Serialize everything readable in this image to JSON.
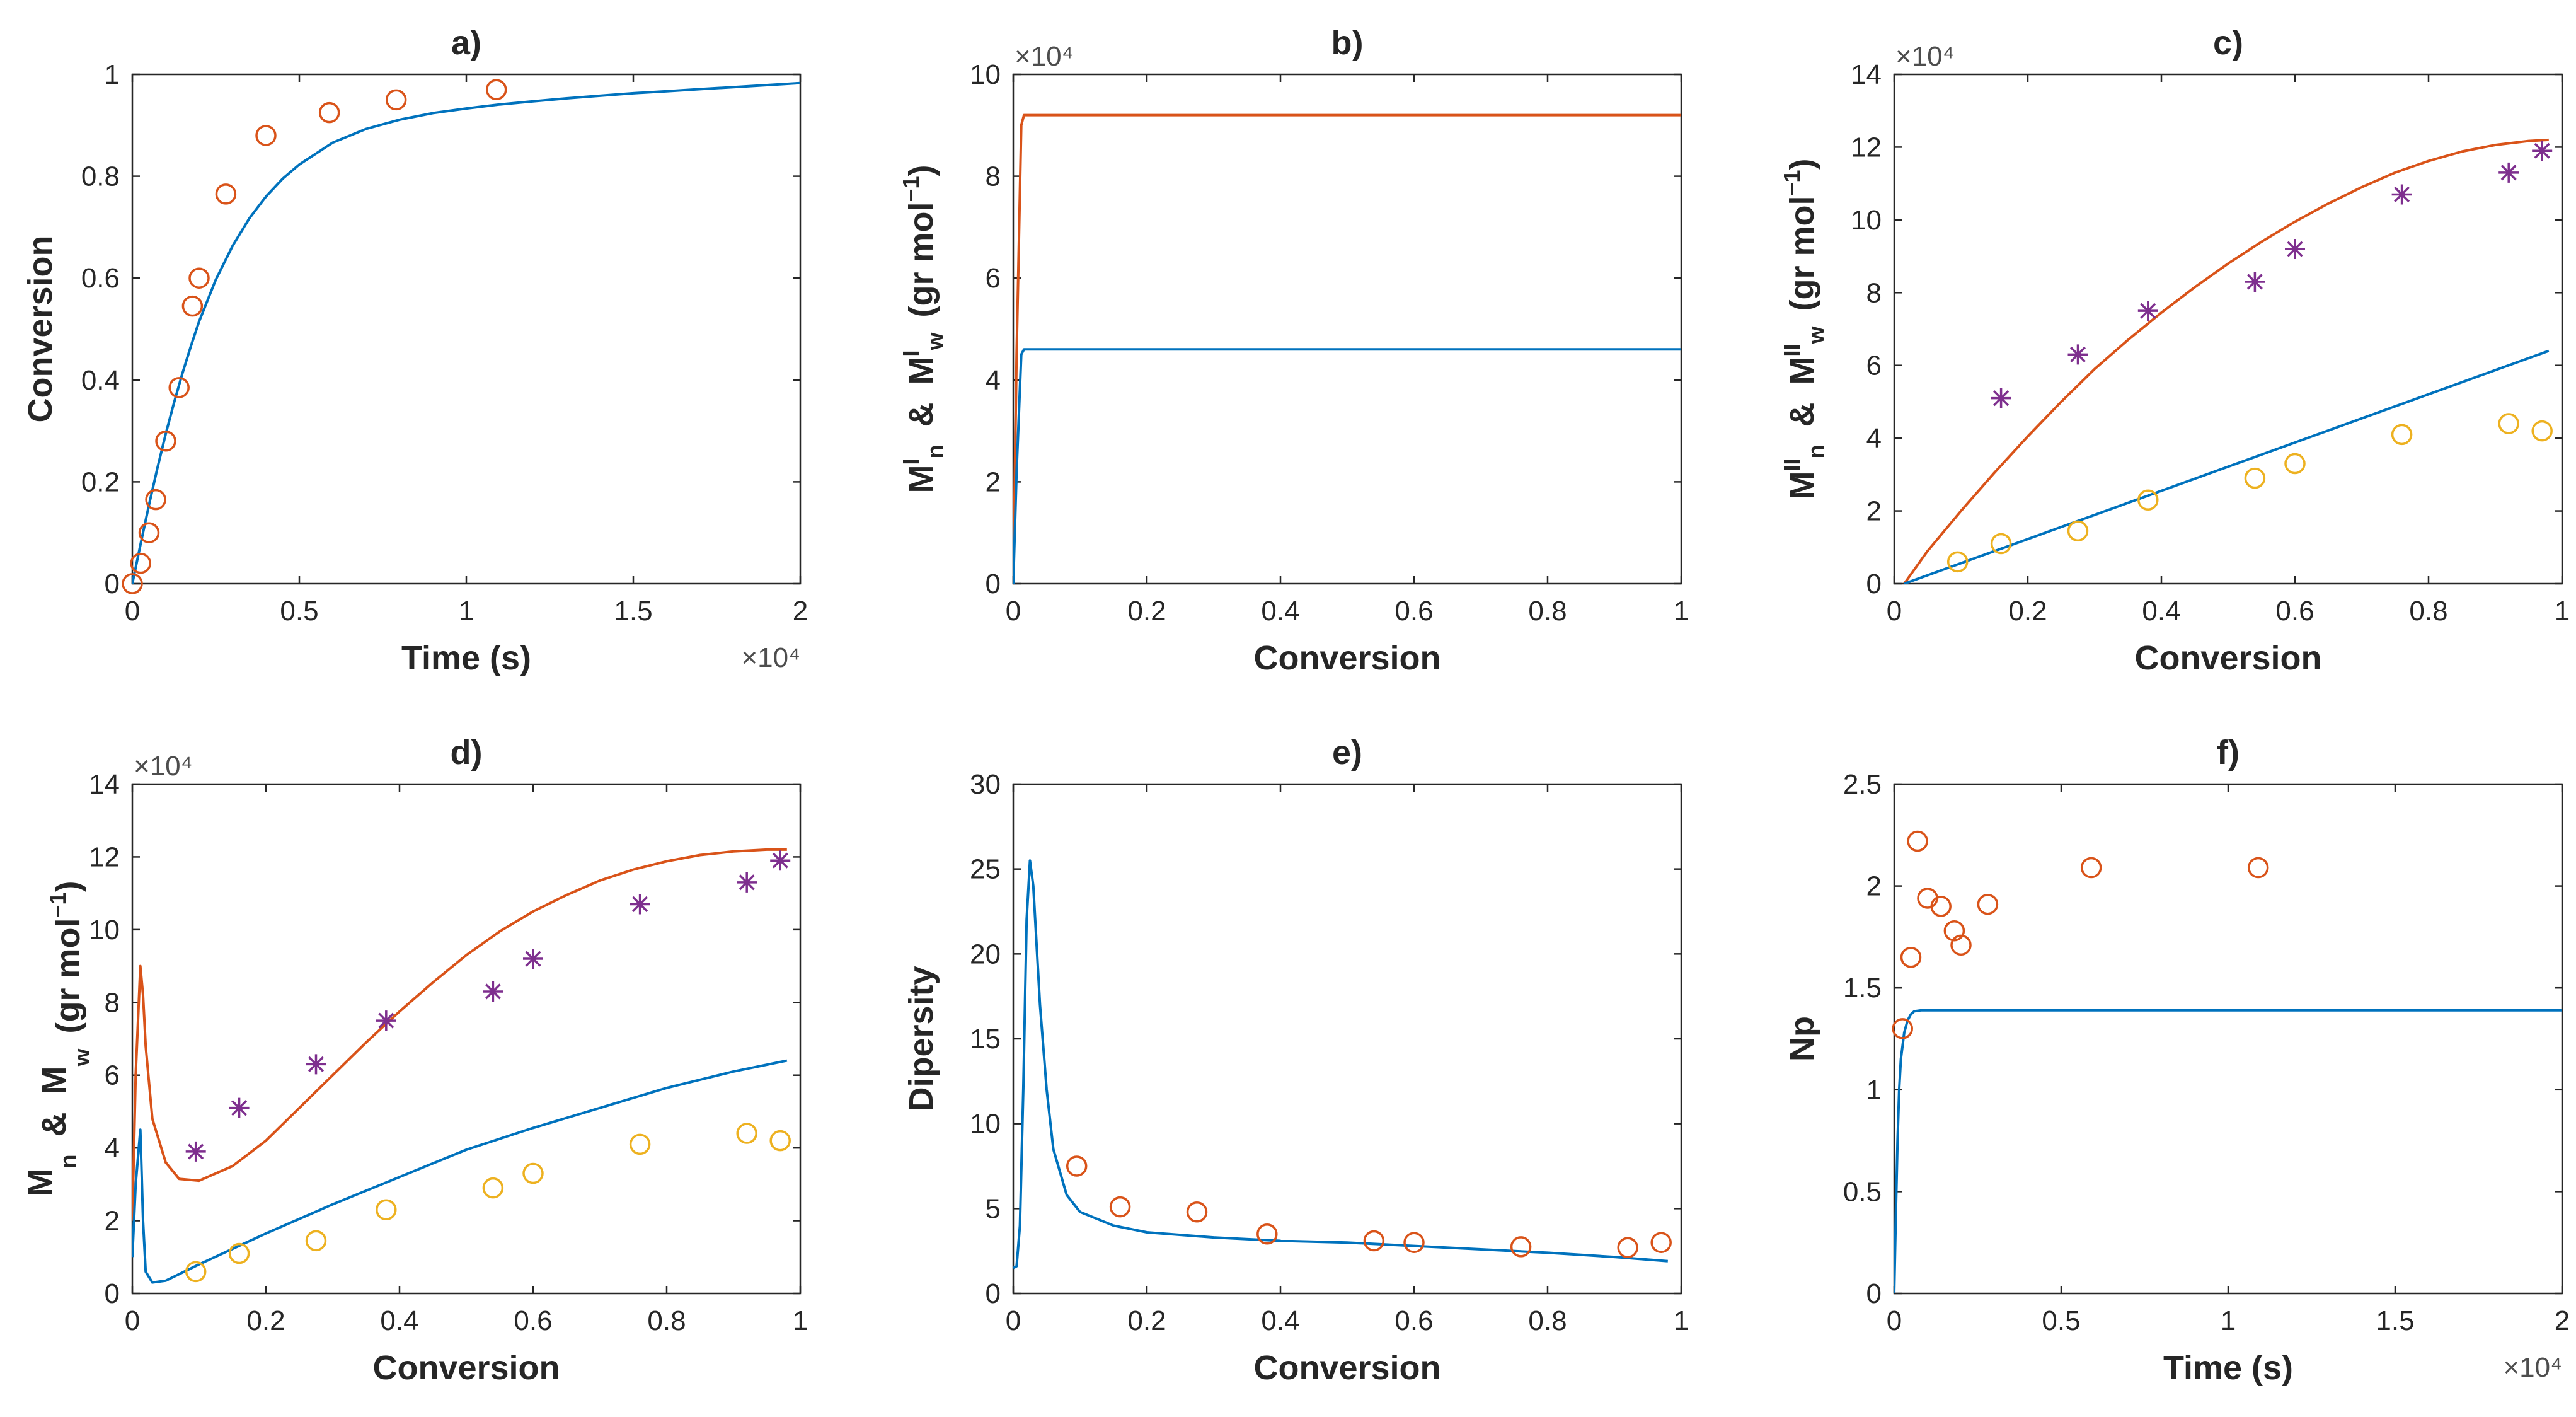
{
  "colors": {
    "model_blue": "#0072BD",
    "model_orange": "#D95319",
    "exp_orange": "#D95319",
    "exp_purple": "#7E2F8E",
    "exp_yellow": "#EDB120",
    "axis": "#262626"
  },
  "chart_data": [
    {
      "id": "a",
      "type": "line",
      "title": "a)",
      "xlabel": "Time (s)",
      "ylabel": "Conversion",
      "xlim": [
        0,
        20000
      ],
      "ylim": [
        0,
        1
      ],
      "xticks": [
        0,
        5000,
        10000,
        15000,
        20000
      ],
      "xtick_labels": [
        "0",
        "0.5",
        "1",
        "1.5",
        "2"
      ],
      "x_multiplier": "×10⁴",
      "yticks": [
        0,
        0.2,
        0.4,
        0.6,
        0.8,
        1
      ],
      "ytick_labels": [
        "0",
        "0.2",
        "0.4",
        "0.6",
        "0.8",
        "1"
      ],
      "series": [
        {
          "name": "model",
          "kind": "line",
          "color": "#0072BD",
          "x": [
            0,
            250,
            500,
            750,
            1000,
            1250,
            1500,
            1750,
            2000,
            2500,
            3000,
            3500,
            4000,
            4500,
            5000,
            6000,
            7000,
            8000,
            9000,
            10000,
            11000,
            12000,
            13000,
            14000,
            15000,
            16000,
            17000,
            18000,
            19000,
            20000
          ],
          "y": [
            0,
            0.079,
            0.155,
            0.227,
            0.294,
            0.356,
            0.413,
            0.466,
            0.515,
            0.597,
            0.663,
            0.717,
            0.76,
            0.795,
            0.823,
            0.866,
            0.893,
            0.911,
            0.924,
            0.933,
            0.941,
            0.947,
            0.953,
            0.958,
            0.963,
            0.967,
            0.971,
            0.975,
            0.979,
            0.983
          ]
        },
        {
          "name": "experiment",
          "kind": "circle",
          "color": "#D95319",
          "x": [
            0,
            250,
            500,
            700,
            1000,
            1400,
            1800,
            2000,
            2800,
            4000,
            5900,
            7900,
            10900
          ],
          "y": [
            0,
            0.04,
            0.1,
            0.165,
            0.28,
            0.385,
            0.545,
            0.6,
            0.765,
            0.88,
            0.925,
            0.95,
            0.97
          ]
        }
      ]
    },
    {
      "id": "b",
      "type": "line",
      "title": "b)",
      "xlabel": "Conversion",
      "ylabel_parts": [
        "M",
        "n",
        "I",
        "&",
        "M",
        "w",
        "I",
        "(gr mol",
        "−1",
        ")"
      ],
      "xlim": [
        0,
        1
      ],
      "ylim": [
        0,
        100000
      ],
      "xticks": [
        0,
        0.2,
        0.4,
        0.6,
        0.8,
        1
      ],
      "xtick_labels": [
        "0",
        "0.2",
        "0.4",
        "0.6",
        "0.8",
        "1"
      ],
      "yticks": [
        0,
        20000,
        40000,
        60000,
        80000,
        100000
      ],
      "ytick_labels": [
        "0",
        "2",
        "4",
        "6",
        "8",
        "10"
      ],
      "y_multiplier": "×10⁴",
      "series": [
        {
          "name": "Mw I",
          "kind": "line",
          "color": "#D95319",
          "x": [
            0,
            0.005,
            0.012,
            0.016,
            1
          ],
          "y": [
            0,
            45000,
            90000,
            92000,
            92000
          ]
        },
        {
          "name": "Mn I",
          "kind": "line",
          "color": "#0072BD",
          "x": [
            0,
            0.005,
            0.012,
            0.016,
            1
          ],
          "y": [
            0,
            22000,
            45000,
            46000,
            46000
          ]
        }
      ]
    },
    {
      "id": "c",
      "type": "line",
      "title": "c)",
      "xlabel": "Conversion",
      "ylabel_parts": [
        "M",
        "n",
        "II",
        "&",
        "M",
        "w",
        "II",
        "(gr mol",
        "−1",
        ")"
      ],
      "xlim": [
        0,
        1
      ],
      "ylim": [
        0,
        140000
      ],
      "xticks": [
        0,
        0.2,
        0.4,
        0.6,
        0.8,
        1
      ],
      "xtick_labels": [
        "0",
        "0.2",
        "0.4",
        "0.6",
        "0.8",
        "1"
      ],
      "yticks": [
        0,
        20000,
        40000,
        60000,
        80000,
        100000,
        120000,
        140000
      ],
      "ytick_labels": [
        "0",
        "2",
        "4",
        "6",
        "8",
        "10",
        "12",
        "14"
      ],
      "y_multiplier": "×10⁴",
      "series": [
        {
          "name": "Mw II model",
          "kind": "line",
          "color": "#D95319",
          "x": [
            0.015,
            0.05,
            0.1,
            0.15,
            0.2,
            0.25,
            0.3,
            0.35,
            0.4,
            0.45,
            0.5,
            0.55,
            0.6,
            0.65,
            0.7,
            0.75,
            0.8,
            0.85,
            0.9,
            0.95,
            0.98
          ],
          "y": [
            0,
            9000,
            20000,
            30500,
            40500,
            50000,
            59000,
            67000,
            74500,
            81500,
            88000,
            94000,
            99500,
            104500,
            109000,
            113000,
            116200,
            118800,
            120600,
            121700,
            122000
          ]
        },
        {
          "name": "Mn II model",
          "kind": "line",
          "color": "#0072BD",
          "x": [
            0.015,
            0.98
          ],
          "y": [
            0,
            64000
          ]
        },
        {
          "name": "Mw II experiment",
          "kind": "star",
          "color": "#7E2F8E",
          "x": [
            0.16,
            0.275,
            0.38,
            0.54,
            0.6,
            0.76,
            0.92,
            0.97
          ],
          "y": [
            51000,
            63000,
            75000,
            83000,
            92000,
            107000,
            113000,
            119000
          ]
        },
        {
          "name": "Mn II experiment",
          "kind": "circle",
          "color": "#EDB120",
          "x": [
            0.095,
            0.16,
            0.275,
            0.38,
            0.54,
            0.6,
            0.76,
            0.92,
            0.97
          ],
          "y": [
            6000,
            11000,
            14500,
            23000,
            29000,
            33000,
            41000,
            44000,
            42000
          ]
        }
      ]
    },
    {
      "id": "d",
      "type": "line",
      "title": "d)",
      "xlabel": "Conversion",
      "ylabel_parts": [
        "M",
        "n",
        "",
        "&",
        "M",
        "w",
        "",
        "(gr mol",
        "−1",
        ")"
      ],
      "xlim": [
        0,
        1
      ],
      "ylim": [
        0,
        140000
      ],
      "xticks": [
        0,
        0.2,
        0.4,
        0.6,
        0.8,
        1
      ],
      "xtick_labels": [
        "0",
        "0.2",
        "0.4",
        "0.6",
        "0.8",
        "1"
      ],
      "yticks": [
        0,
        20000,
        40000,
        60000,
        80000,
        100000,
        120000,
        140000
      ],
      "ytick_labels": [
        "0",
        "2",
        "4",
        "6",
        "8",
        "10",
        "12",
        "14"
      ],
      "y_multiplier": "×10⁴",
      "series": [
        {
          "name": "Mw model",
          "kind": "line",
          "color": "#D95319",
          "x": [
            0,
            0.005,
            0.012,
            0.016,
            0.02,
            0.03,
            0.05,
            0.07,
            0.1,
            0.15,
            0.2,
            0.25,
            0.3,
            0.35,
            0.4,
            0.45,
            0.5,
            0.55,
            0.6,
            0.65,
            0.7,
            0.75,
            0.8,
            0.85,
            0.9,
            0.95,
            0.98
          ],
          "y": [
            20000,
            60000,
            90000,
            82000,
            68000,
            48000,
            36000,
            31500,
            31000,
            35000,
            42000,
            51000,
            60000,
            69000,
            77500,
            85500,
            93000,
            99500,
            105000,
            109500,
            113500,
            116500,
            118800,
            120500,
            121500,
            122000,
            122000
          ]
        },
        {
          "name": "Mn model",
          "kind": "line",
          "color": "#0072BD",
          "x": [
            0,
            0.005,
            0.012,
            0.016,
            0.02,
            0.03,
            0.05,
            0.1,
            0.2,
            0.3,
            0.4,
            0.5,
            0.6,
            0.7,
            0.8,
            0.9,
            0.98
          ],
          "y": [
            10000,
            30000,
            45000,
            20000,
            6000,
            3000,
            3500,
            8000,
            16500,
            24500,
            32000,
            39500,
            45500,
            51000,
            56500,
            61000,
            64000
          ]
        },
        {
          "name": "Mw experiment",
          "kind": "star",
          "color": "#7E2F8E",
          "x": [
            0.095,
            0.16,
            0.275,
            0.38,
            0.54,
            0.6,
            0.76,
            0.92,
            0.97
          ],
          "y": [
            39000,
            51000,
            63000,
            75000,
            83000,
            92000,
            107000,
            113000,
            119000
          ]
        },
        {
          "name": "Mn experiment",
          "kind": "circle",
          "color": "#EDB120",
          "x": [
            0.095,
            0.16,
            0.275,
            0.38,
            0.54,
            0.6,
            0.76,
            0.92,
            0.97
          ],
          "y": [
            6000,
            11000,
            14500,
            23000,
            29000,
            33000,
            41000,
            44000,
            42000
          ]
        }
      ]
    },
    {
      "id": "e",
      "type": "line",
      "title": "e)",
      "xlabel": "Conversion",
      "ylabel": "Dipersity",
      "xlim": [
        0,
        1
      ],
      "ylim": [
        0,
        30
      ],
      "xticks": [
        0,
        0.2,
        0.4,
        0.6,
        0.8,
        1
      ],
      "xtick_labels": [
        "0",
        "0.2",
        "0.4",
        "0.6",
        "0.8",
        "1"
      ],
      "yticks": [
        0,
        5,
        10,
        15,
        20,
        25,
        30
      ],
      "ytick_labels": [
        "0",
        "5",
        "10",
        "15",
        "20",
        "25",
        "30"
      ],
      "series": [
        {
          "name": "model",
          "kind": "line",
          "color": "#0072BD",
          "x": [
            0,
            0.005,
            0.01,
            0.015,
            0.02,
            0.025,
            0.03,
            0.04,
            0.05,
            0.06,
            0.08,
            0.1,
            0.15,
            0.2,
            0.3,
            0.4,
            0.5,
            0.6,
            0.7,
            0.8,
            0.9,
            0.98
          ],
          "y": [
            1.5,
            1.6,
            4,
            12,
            22,
            25.5,
            24,
            17,
            12,
            8.5,
            5.8,
            4.8,
            4,
            3.6,
            3.3,
            3.1,
            3,
            2.8,
            2.6,
            2.4,
            2.15,
            1.9
          ]
        },
        {
          "name": "experiment",
          "kind": "circle",
          "color": "#D95319",
          "x": [
            0.095,
            0.16,
            0.275,
            0.38,
            0.54,
            0.6,
            0.76,
            0.92,
            0.97
          ],
          "y": [
            7.5,
            5.1,
            4.8,
            3.5,
            3.1,
            3.0,
            2.75,
            2.7,
            3.0
          ]
        }
      ]
    },
    {
      "id": "f",
      "type": "line",
      "title": "f)",
      "xlabel": "Time (s)",
      "ylabel": "Np",
      "xlim": [
        0,
        20000
      ],
      "ylim": [
        0,
        2.5
      ],
      "xticks": [
        0,
        5000,
        10000,
        15000,
        20000
      ],
      "xtick_labels": [
        "0",
        "0.5",
        "1",
        "1.5",
        "2"
      ],
      "x_multiplier": "×10⁴",
      "yticks": [
        0,
        0.5,
        1,
        1.5,
        2,
        2.5
      ],
      "ytick_labels": [
        "0",
        "0.5",
        "1",
        "1.5",
        "2",
        "2.5"
      ],
      "series": [
        {
          "name": "model",
          "kind": "line",
          "color": "#0072BD",
          "x": [
            0,
            50,
            100,
            150,
            200,
            300,
            400,
            500,
            600,
            800,
            1000,
            1500,
            20000
          ],
          "y": [
            0,
            0.4,
            0.75,
            1.0,
            1.15,
            1.28,
            1.34,
            1.37,
            1.385,
            1.39,
            1.39,
            1.39,
            1.39
          ]
        },
        {
          "name": "experiment",
          "kind": "circle",
          "color": "#D95319",
          "x": [
            250,
            500,
            700,
            1000,
            1400,
            1800,
            2000,
            2800,
            5900,
            10900
          ],
          "y": [
            1.3,
            1.65,
            2.22,
            1.94,
            1.9,
            1.78,
            1.71,
            1.91,
            2.09,
            2.09
          ]
        }
      ]
    }
  ]
}
